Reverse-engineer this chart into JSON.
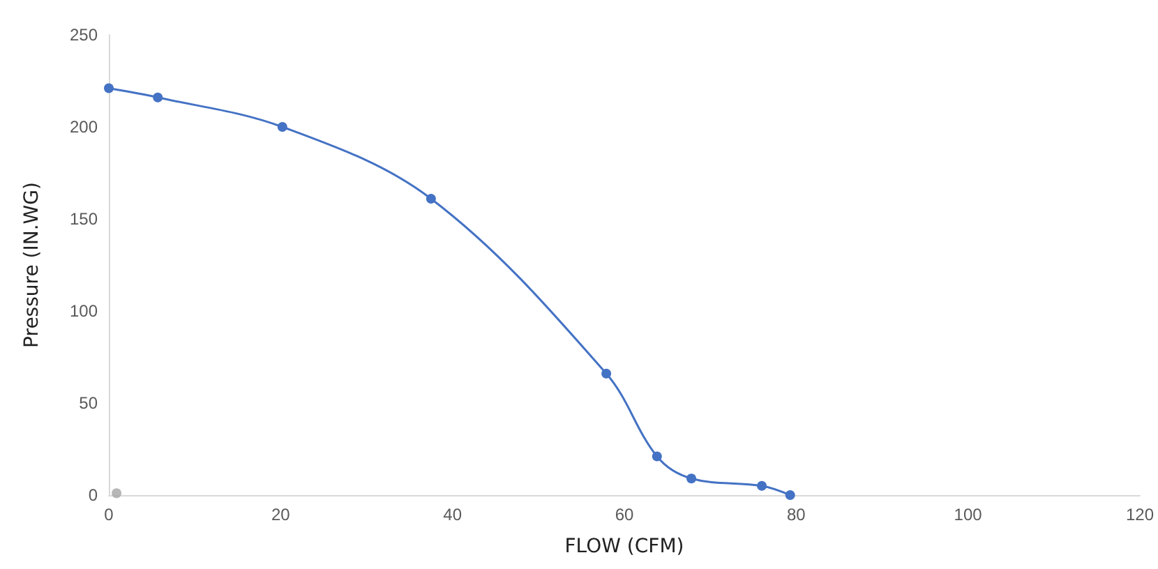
{
  "chart_data": {
    "type": "line",
    "xlabel": "FLOW (CFM)",
    "ylabel": "Pressure (IN.WG)",
    "xlim": [
      0,
      120
    ],
    "xticks": [
      0,
      20,
      40,
      60,
      80,
      100,
      120
    ],
    "ylim": [
      0,
      250
    ],
    "yticks": [
      0,
      50,
      100,
      150,
      200,
      250
    ],
    "grid": false,
    "marker": "circle",
    "line_style": "solid",
    "series": [
      {
        "color": "#4472c4",
        "x": [
          0,
          5.7,
          20.2,
          37.5,
          57.9,
          63.8,
          67.8,
          76,
          79.3
        ],
        "values": [
          221,
          216,
          200,
          161,
          66,
          21,
          9,
          5,
          0
        ]
      },
      {
        "type": "scatter",
        "color": "#a5a5a5",
        "x": [
          0.9
        ],
        "values": [
          1
        ]
      }
    ]
  }
}
